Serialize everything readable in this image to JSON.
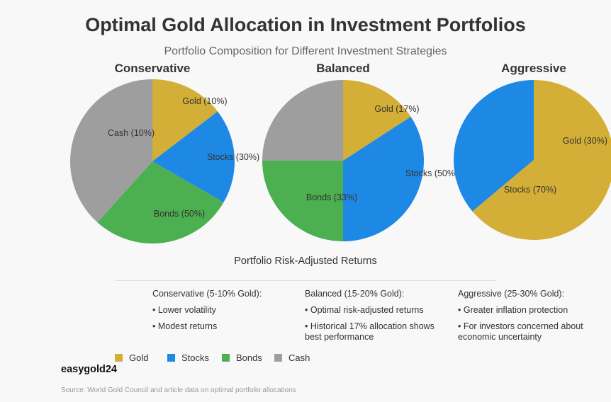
{
  "title": "Optimal Gold Allocation in Investment Portfolios",
  "subtitle": "Portfolio Composition for Different Investment Strategies",
  "colors": {
    "Gold": "#D4AF37",
    "Stocks": "#1E88E5",
    "Bonds": "#4CAF50",
    "Cash": "#9E9E9E"
  },
  "chart_data": [
    {
      "type": "pie",
      "title": "Conservative",
      "slices": [
        {
          "category": "Gold",
          "label": "Gold (10%)",
          "value": 10
        },
        {
          "category": "Stocks",
          "label": "Stocks (30%)",
          "value": 30
        },
        {
          "category": "Bonds",
          "label": "Bonds (50%)",
          "value": 50
        },
        {
          "category": "Cash",
          "label": "Cash (10%)",
          "value": 10
        }
      ]
    },
    {
      "type": "pie",
      "title": "Balanced",
      "slices": [
        {
          "category": "Gold",
          "label": "Gold (17%)",
          "value": 17
        },
        {
          "category": "Stocks",
          "label": "Stocks (50%)",
          "value": 50
        },
        {
          "category": "Bonds",
          "label": "Bonds (33%)",
          "value": 33
        },
        {
          "category": "Cash",
          "label": "",
          "value": null
        }
      ]
    },
    {
      "type": "pie",
      "title": "Aggressive",
      "slices": [
        {
          "category": "Gold",
          "label": "Gold (30%)",
          "value": 30
        },
        {
          "category": "Stocks",
          "label": "Stocks (70%)",
          "value": 70
        }
      ]
    }
  ],
  "returns": {
    "title": "Portfolio Risk-Adjusted Returns",
    "columns": [
      {
        "heading": "Conservative (5-10% Gold):",
        "bullets": [
          "• Lower volatility",
          "• Modest returns"
        ]
      },
      {
        "heading": "Balanced (15-20% Gold):",
        "bullets": [
          "• Optimal risk-adjusted returns",
          "• Historical 17% allocation shows best performance"
        ]
      },
      {
        "heading": "Aggressive (25-30% Gold):",
        "bullets": [
          "• Greater inflation protection",
          "• For investors concerned about economic uncertainty"
        ]
      }
    ]
  },
  "legend": [
    "Gold",
    "Stocks",
    "Bonds",
    "Cash"
  ],
  "brand": "easygold24",
  "source": "Source: World Gold Council and article data on optimal portfolio allocations"
}
